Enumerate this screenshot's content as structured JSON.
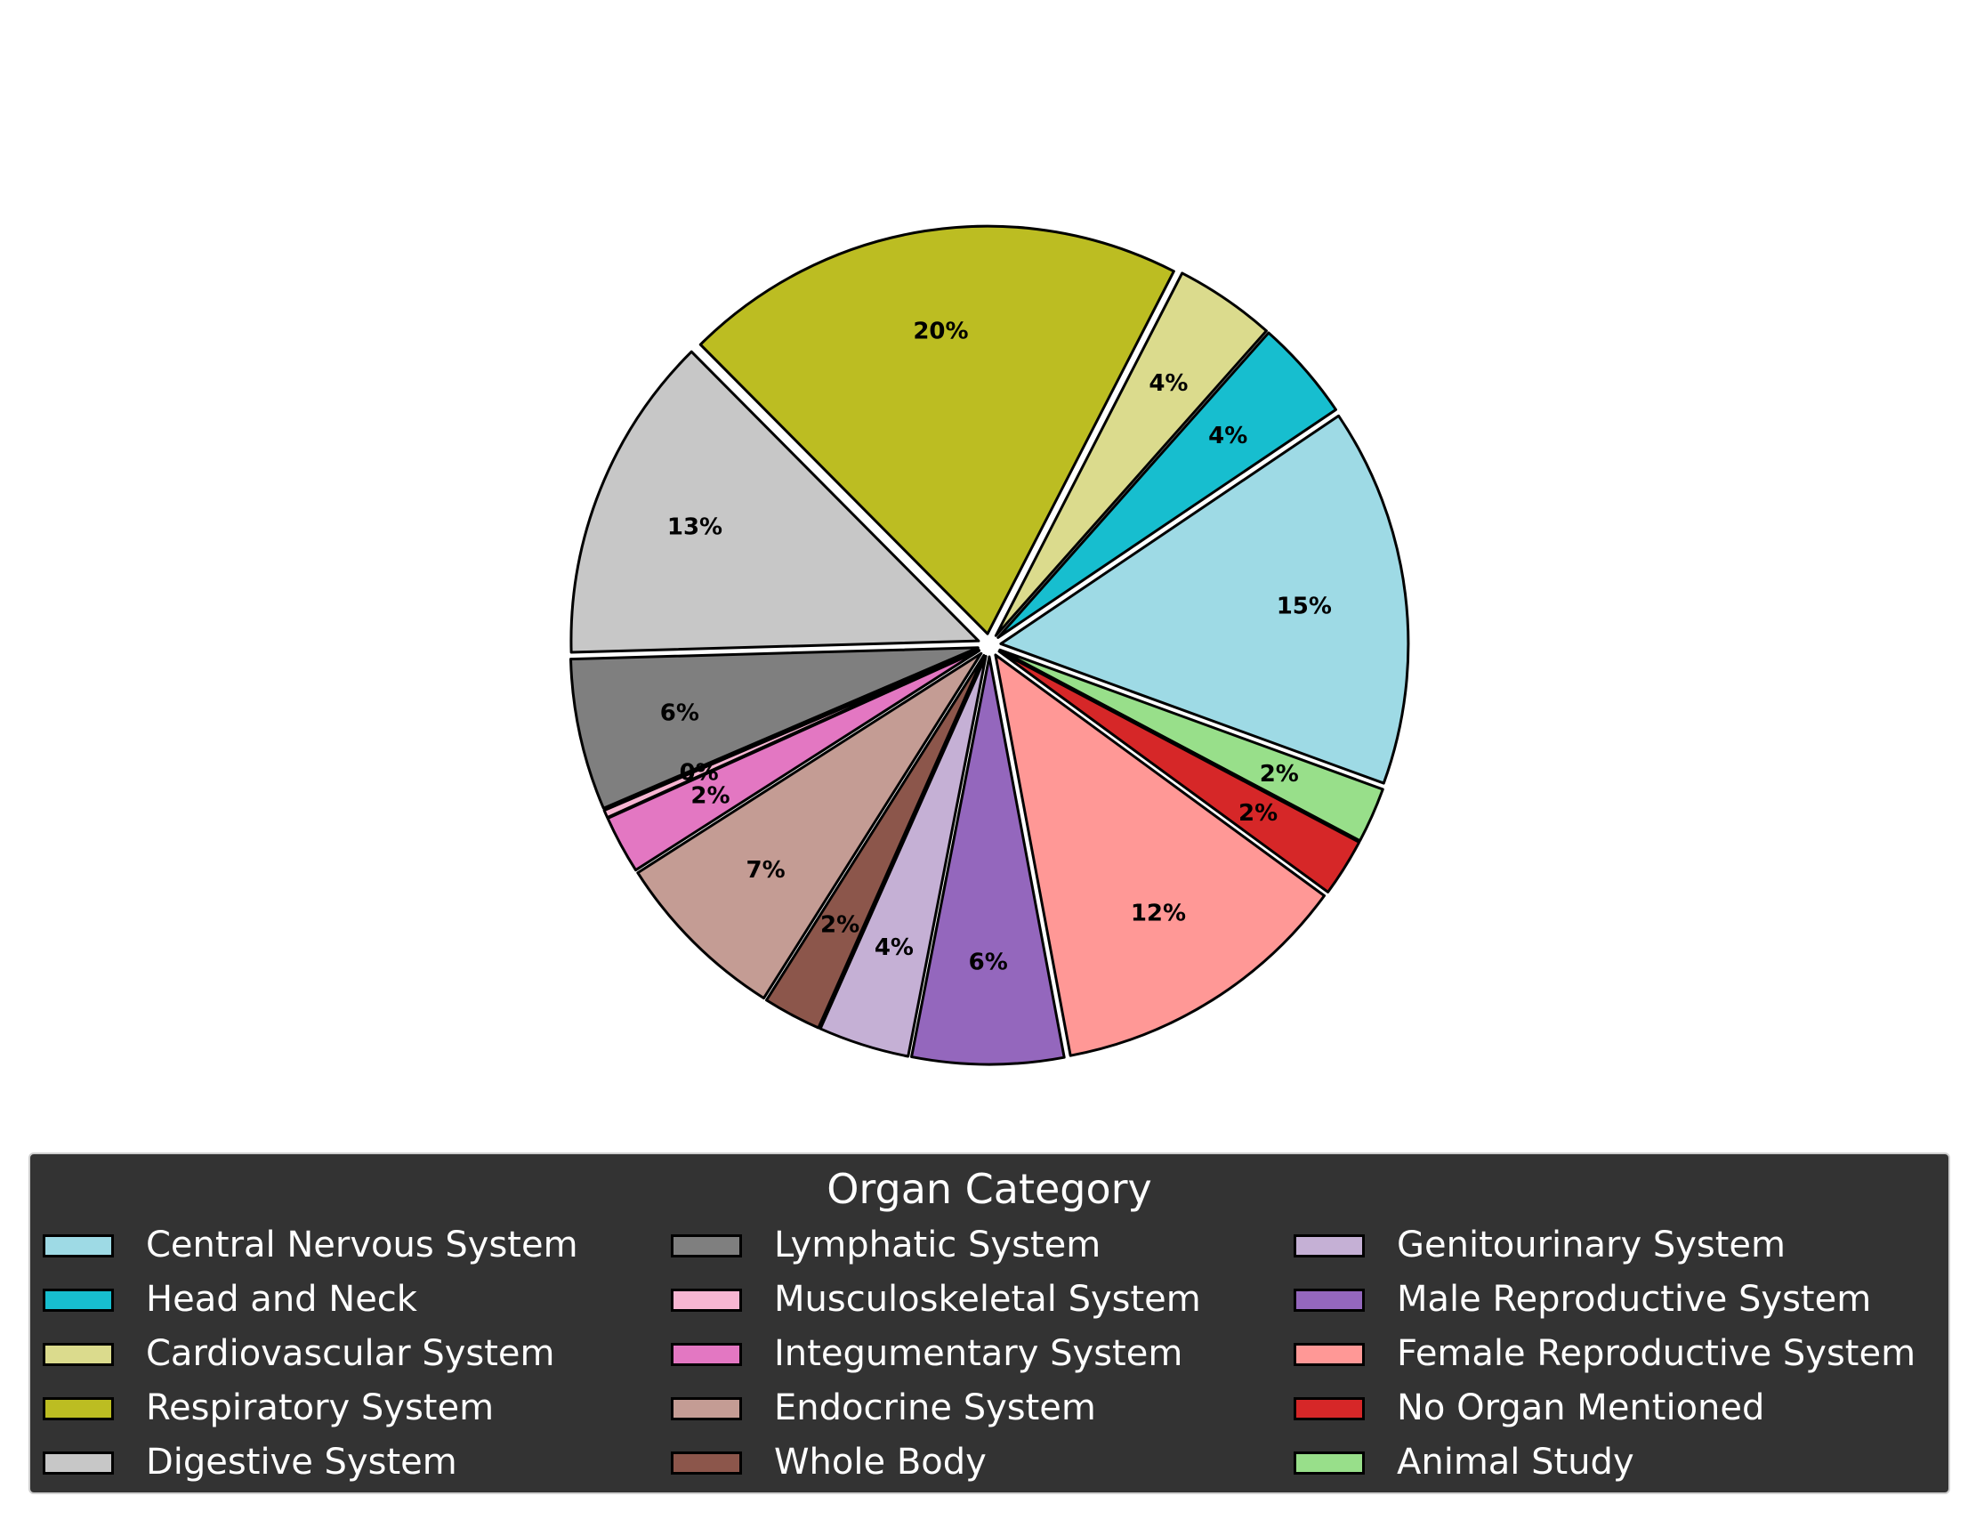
{
  "chart_data": {
    "type": "pie",
    "legend_title": "Organ Category",
    "legend_placement": "bottom",
    "slices": [
      {
        "label": "Central Nervous System",
        "value": 15,
        "pct_label": "15%",
        "color": "#9edae5"
      },
      {
        "label": "Head and Neck",
        "value": 4,
        "pct_label": "4%",
        "color": "#17becf"
      },
      {
        "label": "Cardiovascular System",
        "value": 4,
        "pct_label": "4%",
        "color": "#dbdb8d"
      },
      {
        "label": "Respiratory System",
        "value": 20,
        "pct_label": "20%",
        "color": "#bcbd22"
      },
      {
        "label": "Digestive System",
        "value": 13,
        "pct_label": "13%",
        "color": "#c7c7c7"
      },
      {
        "label": "Lymphatic System",
        "value": 6,
        "pct_label": "6%",
        "color": "#7f7f7f"
      },
      {
        "label": "Musculoskeletal System",
        "value": 0.3,
        "pct_label": "0%",
        "color": "#f7b6d2"
      },
      {
        "label": "Integumentary System",
        "value": 2.3,
        "pct_label": "2%",
        "color": "#e377c2"
      },
      {
        "label": "Endocrine System",
        "value": 7,
        "pct_label": "7%",
        "color": "#c49c94"
      },
      {
        "label": "Whole Body",
        "value": 2.3,
        "pct_label": "2%",
        "color": "#8c564b"
      },
      {
        "label": "Genitourinary System",
        "value": 3.6,
        "pct_label": "4%",
        "color": "#c5b0d5"
      },
      {
        "label": "Male Reproductive System",
        "value": 6,
        "pct_label": "6%",
        "color": "#9467bd"
      },
      {
        "label": "Female Reproductive System",
        "value": 12,
        "pct_label": "12%",
        "color": "#ff9896"
      },
      {
        "label": "No Organ Mentioned",
        "value": 2.3,
        "pct_label": "2%",
        "color": "#d62728"
      },
      {
        "label": "Animal Study",
        "value": 2.2,
        "pct_label": "2%",
        "color": "#98df8a"
      }
    ]
  }
}
